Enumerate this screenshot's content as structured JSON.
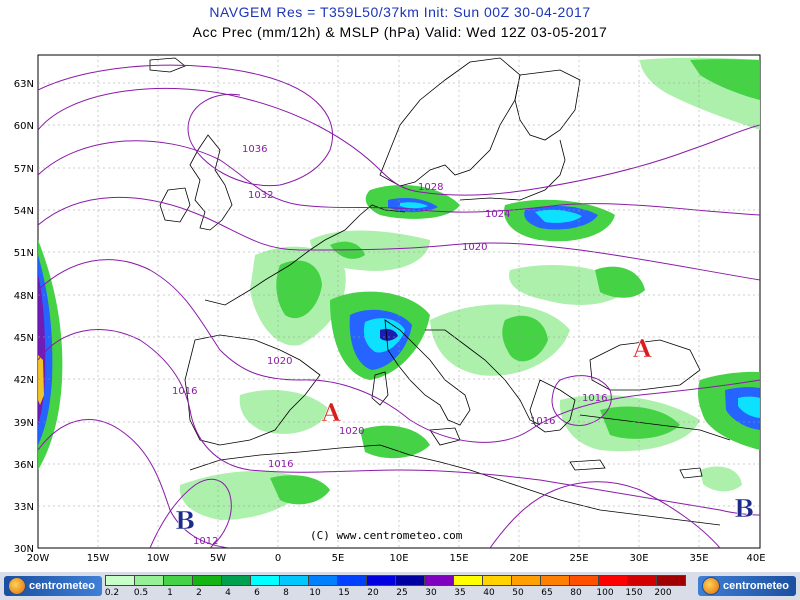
{
  "header": {
    "line1": "NAVGEM Res = T359L50/37km   Init: Sun 00Z 30-04-2017",
    "line2": "Acc Prec (mm/12h) & MSLP (hPa)  Valid: Wed 12Z 03-05-2017"
  },
  "map": {
    "lat_labels": [
      "63N",
      "60N",
      "57N",
      "54N",
      "51N",
      "48N",
      "45N",
      "42N",
      "39N",
      "36N",
      "33N",
      "30N"
    ],
    "lon_labels": [
      "20W",
      "15W",
      "10W",
      "5W",
      "0",
      "5E",
      "10E",
      "15E",
      "20E",
      "25E",
      "30E",
      "35E",
      "40E"
    ],
    "isobar_labels": {
      "i1036": "1036",
      "i1032": "1032",
      "i1028": "1028",
      "i1024": "1024",
      "i1020a": "1020",
      "i1020b": "1020",
      "i1020c": "1020",
      "i1016a": "1016",
      "i1016b": "1016",
      "i1016c": "1016",
      "i1016d": "1016",
      "i1012": "1012"
    },
    "pressure_centers": {
      "high1": "A",
      "high2": "A",
      "low1": "B",
      "low2": "B"
    },
    "credit": "(C) www.centrometeo.com",
    "colors": {
      "isobar": "#8a1aa8",
      "high": "#d81e1e",
      "low": "#1c2a8c",
      "coast": "#000000",
      "land": "#ffffff",
      "light_green": "#a8f0a8",
      "green": "#3cd03c",
      "dark_green": "#16a016",
      "cyan": "#00e0ff",
      "blue": "#1a5cff",
      "dark_blue": "#1010b0"
    }
  },
  "legend": {
    "logo_left": "centrometeo",
    "logo_right": "centrometeo",
    "labels": [
      "0.2",
      "0.5",
      "1",
      "2",
      "4",
      "6",
      "8",
      "10",
      "15",
      "20",
      "25",
      "30",
      "35",
      "40",
      "50",
      "65",
      "80",
      "100",
      "150",
      "200"
    ],
    "colors": [
      "#c8ffc8",
      "#96f096",
      "#46d246",
      "#14b414",
      "#00a050",
      "#00ffff",
      "#00c8ff",
      "#0080ff",
      "#0040ff",
      "#0000e0",
      "#0000a0",
      "#8000c0",
      "#ffff00",
      "#ffd200",
      "#ffa000",
      "#ff8000",
      "#ff5000",
      "#ff0000",
      "#d20000",
      "#a00000"
    ]
  }
}
